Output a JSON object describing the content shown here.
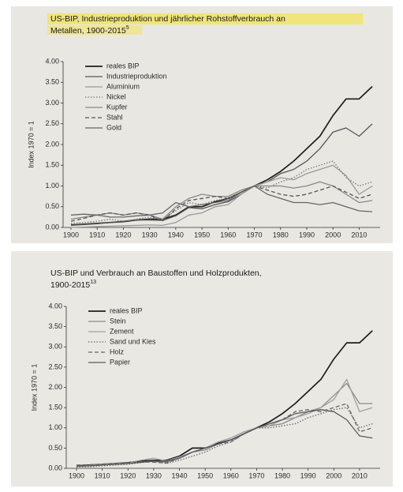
{
  "chart_data": [
    {
      "type": "line",
      "title": [
        "US-BIP, Industrieproduktion und jährlicher Rohstoffverbrauch an",
        "Metallen, 1900-2015"
      ],
      "footnote": "5",
      "y_label": "Index 1970 = 1",
      "legend": "upper left",
      "x": [
        1900,
        1905,
        1910,
        1915,
        1920,
        1925,
        1930,
        1935,
        1940,
        1945,
        1950,
        1955,
        1960,
        1965,
        1970,
        1975,
        1980,
        1985,
        1990,
        1995,
        2000,
        2005,
        2010,
        2015
      ],
      "xlim": [
        1897,
        2018
      ],
      "xticks": [
        1900,
        1910,
        1920,
        1930,
        1940,
        1950,
        1960,
        1970,
        1980,
        1990,
        2000,
        2010
      ],
      "ylim": [
        0,
        4
      ],
      "yticks": [
        {
          "value": 0,
          "label": "0.00"
        },
        {
          "value": 0.5,
          "label": "0.50"
        },
        {
          "value": 1,
          "label": "1.00"
        },
        {
          "value": 1.5,
          "label": "1.50"
        },
        {
          "value": 2,
          "label": "2.00"
        },
        {
          "value": 2.5,
          "label": "2.50"
        },
        {
          "value": 3,
          "label": "3.00"
        },
        {
          "value": 3.5,
          "label": "3.50"
        },
        {
          "value": 4,
          "label": "4.00"
        }
      ],
      "series": [
        {
          "name": "reales BIP",
          "color": "#1e1e1e",
          "style": "solid",
          "values": [
            0.06,
            0.08,
            0.1,
            0.12,
            0.14,
            0.18,
            0.2,
            0.2,
            0.3,
            0.5,
            0.5,
            0.62,
            0.7,
            0.85,
            1.0,
            1.15,
            1.35,
            1.6,
            1.9,
            2.2,
            2.7,
            3.1,
            3.1,
            3.4
          ]
        },
        {
          "name": "Industrieproduktion",
          "color": "#555555",
          "style": "solid",
          "values": [
            0.05,
            0.07,
            0.09,
            0.12,
            0.15,
            0.18,
            0.18,
            0.17,
            0.28,
            0.48,
            0.45,
            0.55,
            0.62,
            0.8,
            1.0,
            1.1,
            1.3,
            1.4,
            1.6,
            1.9,
            2.3,
            2.4,
            2.2,
            2.5
          ]
        },
        {
          "name": "Aluminium",
          "color": "#9a9a9a",
          "style": "solid",
          "values": [
            0.0,
            0.01,
            0.02,
            0.03,
            0.04,
            0.05,
            0.06,
            0.05,
            0.12,
            0.3,
            0.35,
            0.5,
            0.55,
            0.8,
            1.0,
            1.1,
            1.2,
            1.15,
            1.3,
            1.4,
            1.5,
            1.25,
            0.8,
            1.0
          ]
        },
        {
          "name": "Nickel",
          "color": "#777777",
          "style": "dotted",
          "values": [
            0.1,
            0.12,
            0.15,
            0.2,
            0.15,
            0.2,
            0.25,
            0.2,
            0.4,
            0.6,
            0.55,
            0.65,
            0.7,
            0.85,
            1.0,
            0.95,
            1.1,
            1.2,
            1.4,
            1.5,
            1.6,
            1.2,
            1.0,
            1.1
          ]
        },
        {
          "name": "Kupfer",
          "color": "#888888",
          "style": "solid",
          "values": [
            0.2,
            0.25,
            0.3,
            0.35,
            0.3,
            0.35,
            0.3,
            0.2,
            0.5,
            0.7,
            0.8,
            0.75,
            0.75,
            0.9,
            1.0,
            1.0,
            1.0,
            0.95,
            1.0,
            1.1,
            1.0,
            0.8,
            0.6,
            0.65
          ]
        },
        {
          "name": "Stahl",
          "color": "#555555",
          "style": "dashed",
          "values": [
            0.15,
            0.22,
            0.3,
            0.35,
            0.3,
            0.35,
            0.3,
            0.15,
            0.45,
            0.65,
            0.7,
            0.75,
            0.7,
            0.85,
            1.0,
            0.9,
            0.8,
            0.75,
            0.8,
            0.9,
            1.0,
            0.85,
            0.7,
            0.8
          ]
        },
        {
          "name": "Gold",
          "color": "#666666",
          "style": "solid",
          "values": [
            0.3,
            0.32,
            0.3,
            0.25,
            0.25,
            0.28,
            0.3,
            0.35,
            0.6,
            0.5,
            0.55,
            0.6,
            0.65,
            0.85,
            1.0,
            0.8,
            0.7,
            0.6,
            0.6,
            0.55,
            0.6,
            0.5,
            0.4,
            0.38
          ]
        }
      ]
    },
    {
      "type": "line",
      "title": [
        "US-BIP und Verbrauch an Baustoffen und Holzprodukten,",
        "1900-2015"
      ],
      "footnote": "13",
      "y_label": "Index 1970 = 1",
      "legend": "upper left",
      "x": [
        1900,
        1905,
        1910,
        1915,
        1920,
        1925,
        1930,
        1935,
        1940,
        1945,
        1950,
        1955,
        1960,
        1965,
        1970,
        1975,
        1980,
        1985,
        1990,
        1995,
        2000,
        2005,
        2010,
        2015
      ],
      "xlim": [
        1896,
        2018
      ],
      "xticks": [
        1900,
        1910,
        1920,
        1930,
        1940,
        1950,
        1960,
        1970,
        1980,
        1990,
        2000,
        2010
      ],
      "ylim": [
        0,
        4
      ],
      "yticks": [
        {
          "value": 0,
          "label": "0.00"
        },
        {
          "value": 0.5,
          "label": "0.50"
        },
        {
          "value": 1,
          "label": "1.00"
        },
        {
          "value": 1.5,
          "label": "1.50"
        },
        {
          "value": 2,
          "label": "2.00"
        },
        {
          "value": 2.5,
          "label": "2.50"
        },
        {
          "value": 3,
          "label": "3.00"
        },
        {
          "value": 3.5,
          "label": "3.50"
        },
        {
          "value": 4,
          "label": "4.00"
        }
      ],
      "series": [
        {
          "name": "reales BIP",
          "color": "#1e1e1e",
          "style": "solid",
          "values": [
            0.06,
            0.08,
            0.1,
            0.12,
            0.14,
            0.18,
            0.2,
            0.2,
            0.3,
            0.5,
            0.5,
            0.62,
            0.7,
            0.85,
            1.0,
            1.15,
            1.35,
            1.6,
            1.9,
            2.2,
            2.7,
            3.1,
            3.1,
            3.4
          ]
        },
        {
          "name": "Stein",
          "color": "#8c8c8c",
          "style": "solid",
          "values": [
            0.05,
            0.06,
            0.08,
            0.1,
            0.12,
            0.15,
            0.18,
            0.15,
            0.25,
            0.4,
            0.45,
            0.6,
            0.7,
            0.85,
            1.0,
            1.05,
            1.1,
            1.25,
            1.4,
            1.5,
            1.8,
            2.1,
            1.6,
            1.6
          ]
        },
        {
          "name": "Zement",
          "color": "#a0a0a0",
          "style": "solid",
          "values": [
            0.05,
            0.07,
            0.1,
            0.12,
            0.13,
            0.2,
            0.25,
            0.18,
            0.28,
            0.4,
            0.5,
            0.65,
            0.75,
            0.9,
            1.0,
            1.05,
            1.2,
            1.25,
            1.35,
            1.5,
            1.7,
            2.2,
            1.4,
            1.5
          ]
        },
        {
          "name": "Sand und Kies",
          "color": "#666666",
          "style": "dotted",
          "values": [
            0.03,
            0.04,
            0.06,
            0.08,
            0.1,
            0.14,
            0.17,
            0.12,
            0.2,
            0.3,
            0.4,
            0.55,
            0.65,
            0.85,
            1.0,
            1.0,
            1.05,
            1.1,
            1.25,
            1.35,
            1.45,
            1.5,
            1.0,
            1.1
          ]
        },
        {
          "name": "Holz",
          "color": "#666666",
          "style": "dashed",
          "values": [
            0.08,
            0.09,
            0.1,
            0.12,
            0.14,
            0.16,
            0.15,
            0.13,
            0.25,
            0.4,
            0.5,
            0.6,
            0.65,
            0.85,
            1.0,
            1.1,
            1.2,
            1.4,
            1.45,
            1.4,
            1.5,
            1.6,
            0.9,
            1.0
          ]
        },
        {
          "name": "Papier",
          "color": "#5a5a5a",
          "style": "solid",
          "values": [
            0.05,
            0.06,
            0.08,
            0.1,
            0.12,
            0.15,
            0.18,
            0.17,
            0.25,
            0.4,
            0.5,
            0.6,
            0.7,
            0.85,
            1.0,
            1.1,
            1.2,
            1.35,
            1.4,
            1.45,
            1.4,
            1.2,
            0.8,
            0.75
          ]
        }
      ]
    }
  ]
}
